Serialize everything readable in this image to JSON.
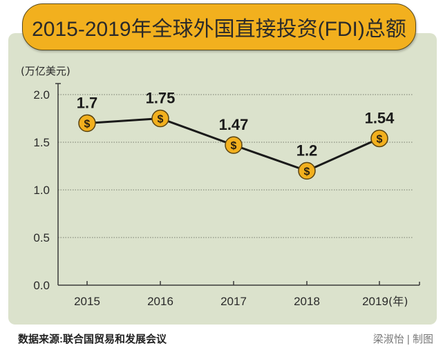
{
  "title": "2015-2019年全球外国直接投资(FDI)总额",
  "footer": {
    "source": "数据来源:联合国贸易和发展会议",
    "credit": "梁淑怡 | 制图"
  },
  "colors": {
    "background_panel": "#dbe2cc",
    "title_fill": "#f2b01e",
    "marker_fill": "#f2b01e",
    "line": "#1a1a1a"
  },
  "marker_icon": "dollar-coin-icon",
  "marker_symbol": "$",
  "chart_data": {
    "type": "line",
    "title": "2015-2019年全球外国直接投资(FDI)总额",
    "ylabel": "(万亿美元)",
    "xlabel": "",
    "x_unit_label": "(年)",
    "categories": [
      "2015",
      "2016",
      "2017",
      "2018",
      "2019"
    ],
    "values": [
      1.7,
      1.75,
      1.47,
      1.2,
      1.54
    ],
    "data_labels": [
      "1.7",
      "1.75",
      "1.47",
      "1.2",
      "1.54"
    ],
    "ylim": [
      0,
      2.0
    ],
    "yticks": [
      0.0,
      0.5,
      1.0,
      1.5,
      2.0
    ],
    "ytick_labels": [
      "0.0",
      "0.5",
      "1.0",
      "1.5",
      "2.0"
    ],
    "grid": "horizontal-dotted",
    "legend": "none"
  }
}
